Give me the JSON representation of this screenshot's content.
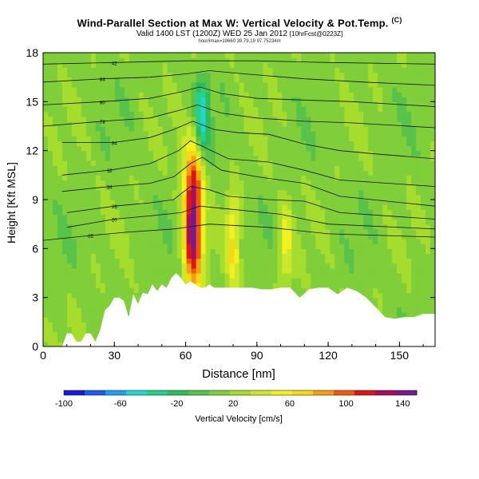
{
  "header": {
    "title": "Wind-Parallel Section at Max W: Vertical Velocity & Pot.Temp.",
    "copyright": "(C)",
    "subtitle": "Valid 1400 LST (1200Z) WED 25 Jan 2012",
    "subtitle_suffix": "[10hrFcst@0223Z]",
    "tiny_line": "hour/imax=19660 39.79,19 97.75234m"
  },
  "chart_data": {
    "type": "heatmap",
    "title": "Wind-Parallel Section at Max W: Vertical Velocity & Pot.Temp.",
    "xlabel": "Distance [nm]",
    "ylabel": "Height [Kft MSL]",
    "xlim": [
      0,
      165
    ],
    "ylim": [
      0,
      18
    ],
    "xticks": [
      0,
      30,
      60,
      90,
      120,
      150
    ],
    "yticks": [
      0,
      3,
      6,
      9,
      12,
      15,
      18
    ],
    "colorbar": {
      "label": "Vertical Velocity [cm/s]",
      "ticks": [
        -100,
        -60,
        -20,
        20,
        60,
        100,
        140
      ],
      "range": [
        -100,
        150
      ],
      "colors": [
        "#1a1ad6",
        "#1e5cf0",
        "#1fa0f4",
        "#22d6cc",
        "#25d08a",
        "#2ebd5a",
        "#58c24a",
        "#7fce3a",
        "#a6dc2e",
        "#cde82a",
        "#f2f01e",
        "#f7d716",
        "#f5a012",
        "#ee5a12",
        "#d81818",
        "#a8105a",
        "#7a1a8a"
      ]
    },
    "features": [
      {
        "name": "updraft-max",
        "x": 63,
        "y_bottom": 3.5,
        "y_top": 12.2,
        "peak": 140
      },
      {
        "name": "updraft-secondary",
        "x": 80,
        "y_bottom": 3.5,
        "y_top": 9.5,
        "peak": 60
      },
      {
        "name": "updraft-third",
        "x": 102,
        "y_bottom": 3.5,
        "y_top": 9.0,
        "peak": 50
      },
      {
        "name": "downdraft-upper",
        "x": 67,
        "y_bottom": 12.0,
        "y_top": 16.5,
        "peak": -50
      }
    ],
    "terrain": {
      "x": [
        0,
        8,
        10,
        12,
        14,
        16,
        18,
        20,
        22,
        24,
        26,
        28,
        30,
        32,
        34,
        36,
        38,
        40,
        42,
        44,
        46,
        48,
        50,
        52,
        54,
        56,
        58,
        60,
        62,
        64,
        66,
        68,
        70,
        72,
        74,
        76,
        78,
        80,
        84,
        88,
        92,
        96,
        100,
        104,
        108,
        112,
        116,
        120,
        124,
        128,
        132,
        136,
        140,
        144,
        148,
        152,
        156,
        160,
        165
      ],
      "y": [
        0.0,
        0.0,
        0.8,
        0.8,
        0.3,
        0.3,
        0.8,
        0.8,
        0.3,
        1.0,
        2.2,
        2.5,
        3.0,
        3.0,
        2.8,
        1.8,
        3.2,
        2.6,
        3.3,
        3.2,
        3.8,
        3.4,
        3.8,
        3.6,
        4.2,
        4.5,
        4.2,
        3.8,
        4.0,
        3.8,
        3.6,
        3.6,
        3.8,
        3.6,
        3.6,
        3.6,
        3.6,
        3.6,
        3.6,
        3.6,
        3.5,
        3.5,
        3.6,
        3.6,
        3.0,
        3.5,
        3.6,
        3.6,
        3.2,
        3.6,
        3.4,
        3.0,
        2.4,
        1.8,
        1.7,
        1.8,
        1.8,
        2.0,
        2.0
      ]
    },
    "isentropes": [
      {
        "label": "84",
        "points": [
          [
            8,
            12.5
          ],
          [
            30,
            12.5
          ],
          [
            45,
            12.8
          ],
          [
            55,
            13.3
          ],
          [
            63,
            13.8
          ],
          [
            72,
            13.3
          ],
          [
            82,
            13.1
          ],
          [
            95,
            13.0
          ],
          [
            110,
            12.4
          ],
          [
            125,
            12.0
          ],
          [
            140,
            11.8
          ],
          [
            165,
            11.5
          ]
        ]
      },
      {
        "label": "78",
        "points": [
          [
            0,
            13.5
          ],
          [
            25,
            13.8
          ],
          [
            45,
            14.0
          ],
          [
            58,
            14.5
          ],
          [
            65,
            14.8
          ],
          [
            75,
            14.3
          ],
          [
            90,
            14.0
          ],
          [
            110,
            13.8
          ],
          [
            130,
            13.7
          ],
          [
            165,
            13.4
          ]
        ]
      },
      {
        "label": "80",
        "points": [
          [
            0,
            14.8
          ],
          [
            25,
            15.0
          ],
          [
            45,
            15.2
          ],
          [
            58,
            15.6
          ],
          [
            66,
            15.9
          ],
          [
            75,
            15.5
          ],
          [
            90,
            15.2
          ],
          [
            110,
            15.1
          ],
          [
            130,
            15.0
          ],
          [
            165,
            14.7
          ]
        ]
      },
      {
        "label": "84",
        "points": [
          [
            0,
            16.2
          ],
          [
            25,
            16.4
          ],
          [
            45,
            16.5
          ],
          [
            60,
            16.7
          ],
          [
            70,
            16.9
          ],
          [
            85,
            16.7
          ],
          [
            110,
            16.4
          ],
          [
            135,
            16.2
          ],
          [
            165,
            16.0
          ]
        ]
      },
      {
        "label": "42",
        "points": [
          [
            0,
            17.3
          ],
          [
            30,
            17.4
          ],
          [
            60,
            17.5
          ],
          [
            90,
            17.5
          ],
          [
            120,
            17.4
          ],
          [
            165,
            17.3
          ]
        ]
      },
      {
        "label": "32",
        "points": [
          [
            8,
            10.5
          ],
          [
            28,
            10.8
          ],
          [
            45,
            11.2
          ],
          [
            57,
            12.0
          ],
          [
            62,
            12.6
          ],
          [
            68,
            12.2
          ],
          [
            78,
            11.5
          ],
          [
            95,
            11.3
          ],
          [
            110,
            10.8
          ],
          [
            125,
            10.2
          ],
          [
            165,
            9.8
          ]
        ]
      },
      {
        "label": "34",
        "points": [
          [
            8,
            9.5
          ],
          [
            28,
            9.8
          ],
          [
            45,
            10.0
          ],
          [
            55,
            10.4
          ],
          [
            62,
            11.2
          ],
          [
            67,
            11.6
          ],
          [
            75,
            10.8
          ],
          [
            90,
            10.4
          ],
          [
            110,
            10.0
          ],
          [
            125,
            9.2
          ],
          [
            165,
            8.6
          ]
        ]
      },
      {
        "label": "26",
        "points": [
          [
            10,
            8.2
          ],
          [
            30,
            8.6
          ],
          [
            45,
            8.8
          ],
          [
            55,
            9.0
          ],
          [
            62,
            9.8
          ],
          [
            70,
            9.6
          ],
          [
            78,
            9.2
          ],
          [
            95,
            9.0
          ],
          [
            110,
            8.9
          ],
          [
            125,
            8.2
          ],
          [
            165,
            7.8
          ]
        ]
      },
      {
        "label": "20",
        "points": [
          [
            10,
            7.3
          ],
          [
            30,
            7.8
          ],
          [
            45,
            8.0
          ],
          [
            58,
            8.2
          ],
          [
            66,
            8.6
          ],
          [
            80,
            8.4
          ],
          [
            100,
            8.1
          ],
          [
            120,
            7.5
          ],
          [
            165,
            7.2
          ]
        ]
      },
      {
        "label": "05",
        "points": [
          [
            0,
            6.5
          ],
          [
            20,
            6.8
          ],
          [
            35,
            7.0
          ],
          [
            55,
            7.2
          ],
          [
            70,
            7.5
          ],
          [
            95,
            7.3
          ],
          [
            120,
            6.9
          ],
          [
            165,
            6.7
          ]
        ]
      }
    ]
  }
}
